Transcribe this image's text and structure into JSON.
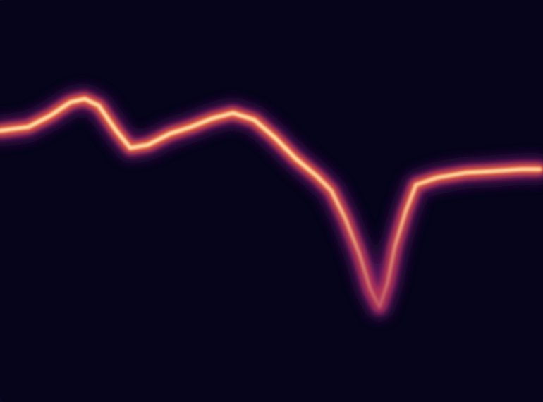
{
  "chart_data": {
    "type": "line",
    "x": [
      0,
      5.2,
      9.1,
      13,
      15.6,
      18.2,
      21.4,
      24,
      27.3,
      31.2,
      35.1,
      39,
      42.9,
      46.8,
      50.6,
      54.5,
      58.4,
      61,
      63.6,
      66.2,
      68.2,
      69.9,
      71.4,
      72.7,
      74.7,
      76.6,
      80.5,
      85.7,
      90.9,
      96.1,
      99.4
    ],
    "series": [
      {
        "color": "#f6a25e",
        "values": [
          67.5,
          68.4,
          71.1,
          74.6,
          75.4,
          73.7,
          67.5,
          63.2,
          64.0,
          66.7,
          68.4,
          70.5,
          71.9,
          70.2,
          65.8,
          60.5,
          56.1,
          52.6,
          45.6,
          36.8,
          28.1,
          23.7,
          29.8,
          38.6,
          47.4,
          54.0,
          55.8,
          57.0,
          57.4,
          57.9,
          57.9
        ]
      }
    ],
    "xlim": [
      0,
      100
    ],
    "ylim": [
      0,
      100
    ],
    "xticks": [
      0,
      100
    ],
    "yticks": [
      0,
      100
    ],
    "grid": false,
    "tick_labels": false
  }
}
